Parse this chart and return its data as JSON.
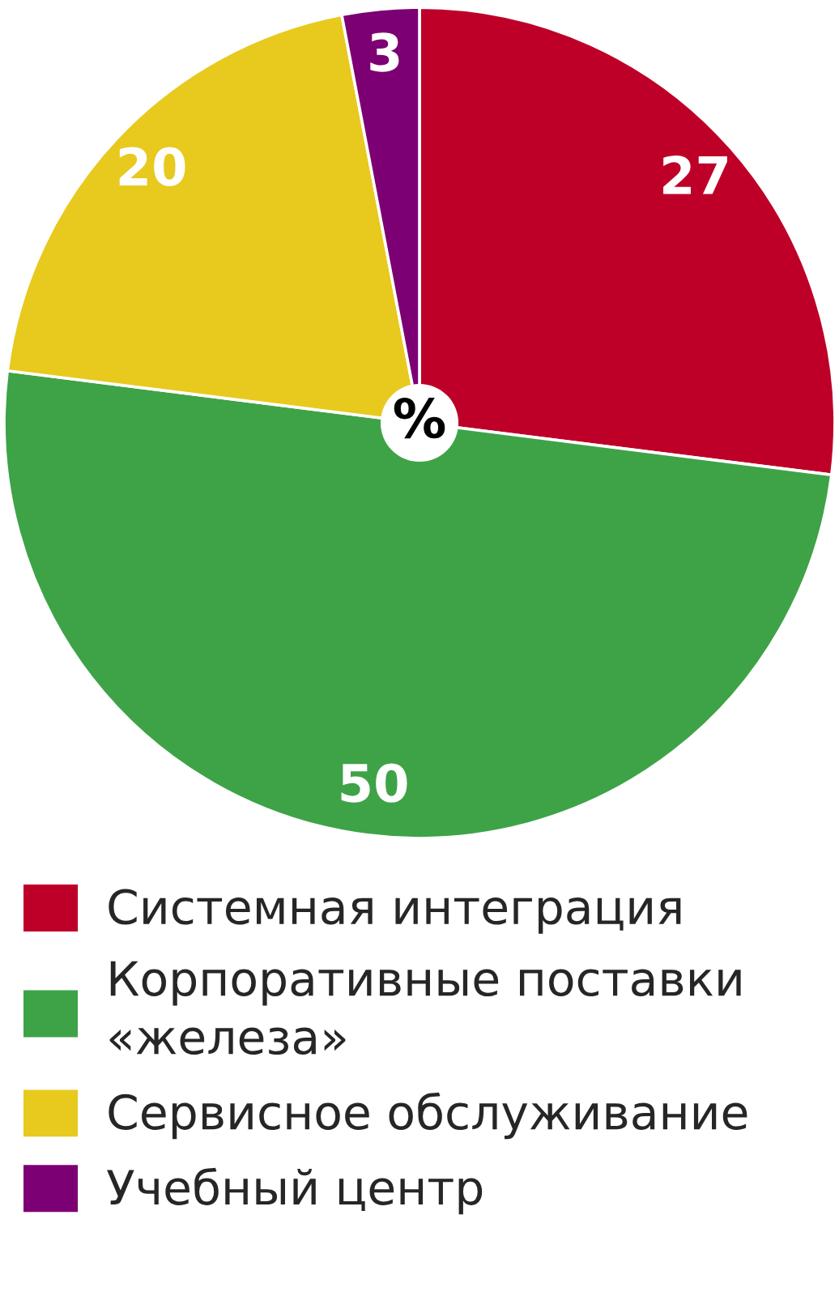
{
  "chart_data": {
    "type": "pie",
    "categories": [
      "Системная интеграция",
      "Корпоративные поставки «железа»",
      "Сервисное обслуживание",
      "Учебный центр"
    ],
    "values": [
      27,
      50,
      20,
      3
    ],
    "colors": [
      "#be0028",
      "#3ea347",
      "#e8c91e",
      "#7c0074"
    ],
    "data_labels": true,
    "legend": "bottom",
    "annotations": [
      "%"
    ]
  }
}
